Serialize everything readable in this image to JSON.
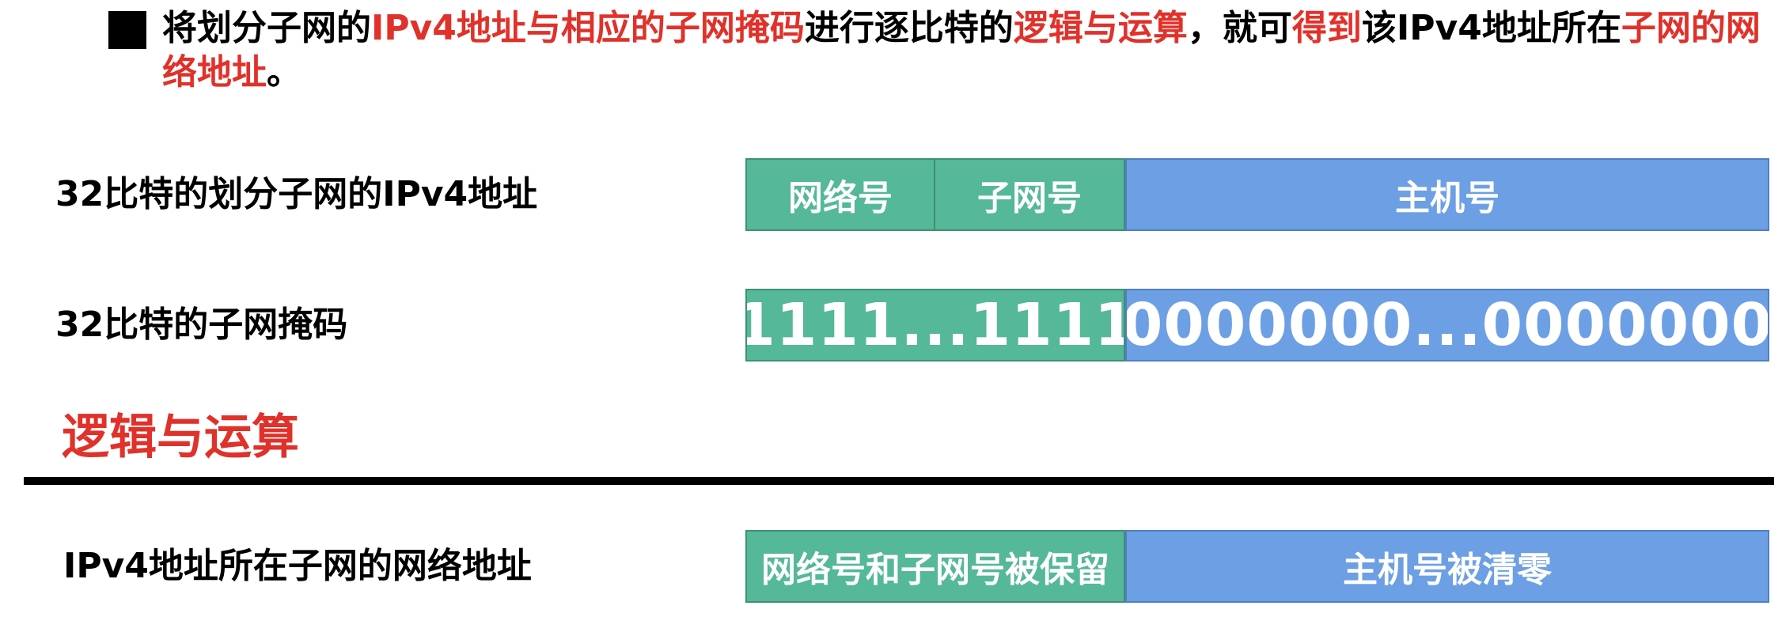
{
  "intro": {
    "t1": "将划分子网的",
    "t2": "IPv4地址与相应的子网掩码",
    "t3": "进行逐比特的",
    "t4": "逻辑与运算",
    "t5": "，就可",
    "t6": "得到",
    "t7": "该IPv4地址所在",
    "t8": "子网的网络地址",
    "t9": "。"
  },
  "colors": {
    "highlight": "#e0312a",
    "green": "#55b898",
    "blue": "#6d9fe4"
  },
  "row1": {
    "label": "32比特的划分子网的IPv4地址",
    "net": "网络号",
    "subnet": "子网号",
    "host": "主机号"
  },
  "row2": {
    "label": "32比特的子网掩码",
    "ones": "1111...1111",
    "zeros": "0000000...0000000"
  },
  "operation": "逻辑与运算",
  "row3": {
    "label": "IPv4地址所在子网的网络地址",
    "kept": "网络号和子网号被保留",
    "cleared": "主机号被清零"
  }
}
